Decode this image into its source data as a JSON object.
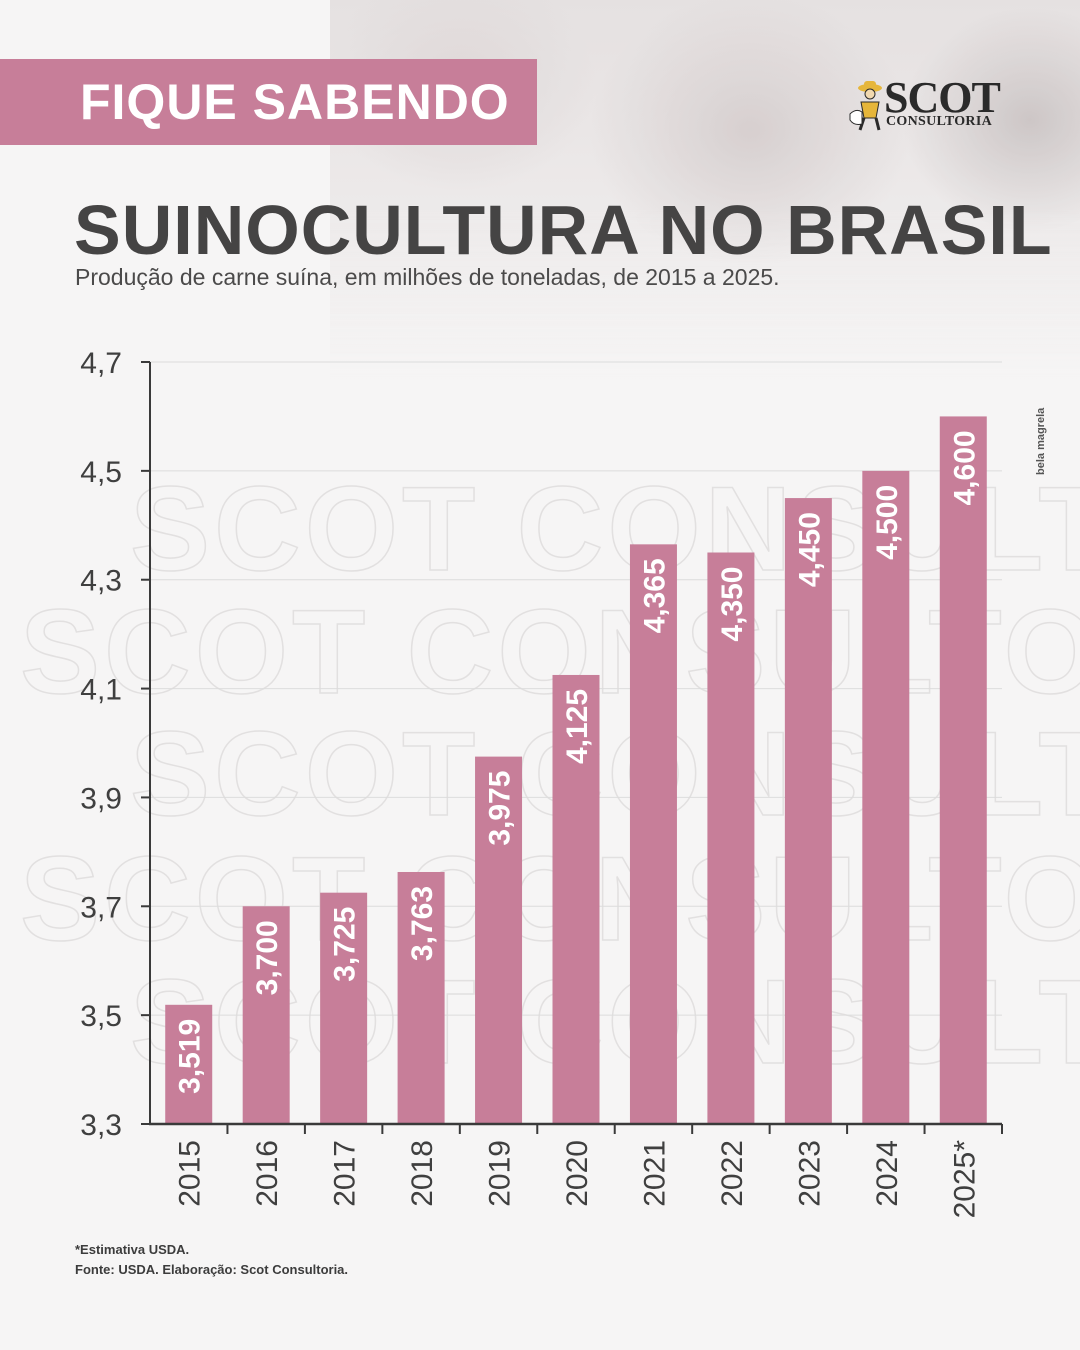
{
  "banner": {
    "text": "FIQUE SABENDO"
  },
  "logo": {
    "brand": "SCOT",
    "sub": "CONSULTORIA"
  },
  "header": {
    "title": "SUINOCULTURA NO BRASIL",
    "subtitle": "Produção de carne suína, em milhões de toneladas, de 2015 a 2025."
  },
  "credit": "bela magrela",
  "watermark": "SCOT CONSULTORIA",
  "notes": {
    "estimate": "*Estimativa USDA.",
    "source": "Fonte: USDA. Elaboração: Scot Consultoria."
  },
  "colors": {
    "bar": "#c77e99",
    "banner": "#c77e99",
    "text": "#454444",
    "grid": "#dcdcdc",
    "axis": "#3a3a3a"
  },
  "chart_data": {
    "type": "bar",
    "categories": [
      "2015",
      "2016",
      "2017",
      "2018",
      "2019",
      "2020",
      "2021",
      "2022",
      "2023",
      "2024",
      "2025*"
    ],
    "values": [
      3.519,
      3.7,
      3.725,
      3.763,
      3.975,
      4.125,
      4.365,
      4.35,
      4.45,
      4.5,
      4.6
    ],
    "value_labels": [
      "3,519",
      "3,700",
      "3,725",
      "3,763",
      "3,975",
      "4,125",
      "4,365",
      "4,350",
      "4,450",
      "4,500",
      "4,600"
    ],
    "ylim": [
      3.3,
      4.7
    ],
    "yticks": [
      3.3,
      3.5,
      3.7,
      3.9,
      4.1,
      4.3,
      4.5,
      4.7
    ],
    "ytick_labels": [
      "3,3",
      "3,5",
      "3,7",
      "3,9",
      "4,1",
      "4,3",
      "4,5",
      "4,7"
    ],
    "grid": true,
    "legend": "none",
    "title": "SUINOCULTURA NO BRASIL",
    "xlabel": "",
    "ylabel": ""
  }
}
